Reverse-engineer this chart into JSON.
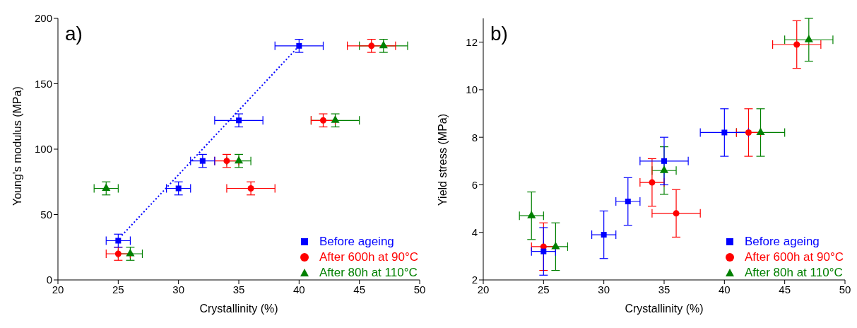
{
  "chart_data": [
    {
      "type": "scatter",
      "annotations": [
        "a)"
      ],
      "xlabel": "Crystallinity (%)",
      "ylabel": "Young's modulus (MPa)",
      "xlim": [
        20,
        50
      ],
      "xticks": [
        20,
        25,
        30,
        35,
        40,
        45,
        50
      ],
      "ylim": [
        0,
        200
      ],
      "yticks": [
        0,
        50,
        100,
        150,
        200
      ],
      "legend": "bottom right",
      "series": [
        {
          "name": "Before ageing",
          "color": "#0000ff",
          "marker": "square",
          "x": [
            25,
            30,
            32,
            35,
            40
          ],
          "values": [
            30,
            70,
            91,
            122,
            179
          ],
          "errors": [
            5,
            5,
            5,
            5,
            5
          ],
          "xerrors": [
            1,
            1,
            1,
            2,
            2
          ]
        },
        {
          "name": "After 600h at 90°C",
          "color": "#ff0000",
          "marker": "circle",
          "x": [
            25,
            34,
            36,
            42,
            46
          ],
          "values": [
            20,
            91,
            70,
            122,
            179
          ],
          "errors": [
            5,
            5,
            5,
            5,
            5
          ],
          "xerrors": [
            1,
            1,
            2,
            1,
            2
          ]
        },
        {
          "name": "After 80h at 110°C",
          "color": "#008000",
          "marker": "triangle",
          "x": [
            24,
            26,
            35,
            43,
            47
          ],
          "values": [
            70,
            20,
            91,
            122,
            179
          ],
          "errors": [
            5,
            5,
            5,
            5,
            5
          ],
          "xerrors": [
            1,
            1,
            1,
            2,
            2
          ]
        },
        {
          "type": "line",
          "color": "#0000ff",
          "line_style": "dotted",
          "x": [
            25.3,
            39.9
          ],
          "values": [
            34,
            178
          ]
        }
      ]
    },
    {
      "type": "scatter",
      "annotations": [
        "b)"
      ],
      "xlabel": "Crystallinity (%)",
      "ylabel": "Yield stress (MPa)",
      "xlim": [
        20,
        50
      ],
      "xticks": [
        20,
        25,
        30,
        35,
        40,
        45,
        50
      ],
      "ylim": [
        2,
        13
      ],
      "yticks": [
        2,
        4,
        6,
        8,
        10,
        12
      ],
      "legend": "bottom right",
      "series": [
        {
          "name": "Before ageing",
          "color": "#0000ff",
          "marker": "square",
          "x": [
            25,
            30,
            32,
            35,
            40
          ],
          "values": [
            3.2,
            3.9,
            5.3,
            7.0,
            8.2
          ],
          "errors": [
            1,
            1,
            1,
            1,
            1
          ],
          "xerrors": [
            1,
            1,
            1,
            2,
            2
          ]
        },
        {
          "name": "After 600h at 90°C",
          "color": "#ff0000",
          "marker": "circle",
          "x": [
            25,
            34,
            36,
            42,
            46
          ],
          "values": [
            3.4,
            6.1,
            4.8,
            8.2,
            11.9
          ],
          "errors": [
            1,
            1,
            1,
            1,
            1
          ],
          "xerrors": [
            1,
            1,
            2,
            1,
            2
          ]
        },
        {
          "name": "After 80h at 110°C",
          "color": "#008000",
          "marker": "triangle",
          "x": [
            24,
            26,
            35,
            43,
            47
          ],
          "values": [
            4.7,
            3.4,
            6.6,
            8.2,
            12.1
          ],
          "errors": [
            1,
            1,
            1,
            1,
            0.9
          ],
          "xerrors": [
            1,
            1,
            1,
            2,
            2
          ]
        }
      ]
    }
  ]
}
